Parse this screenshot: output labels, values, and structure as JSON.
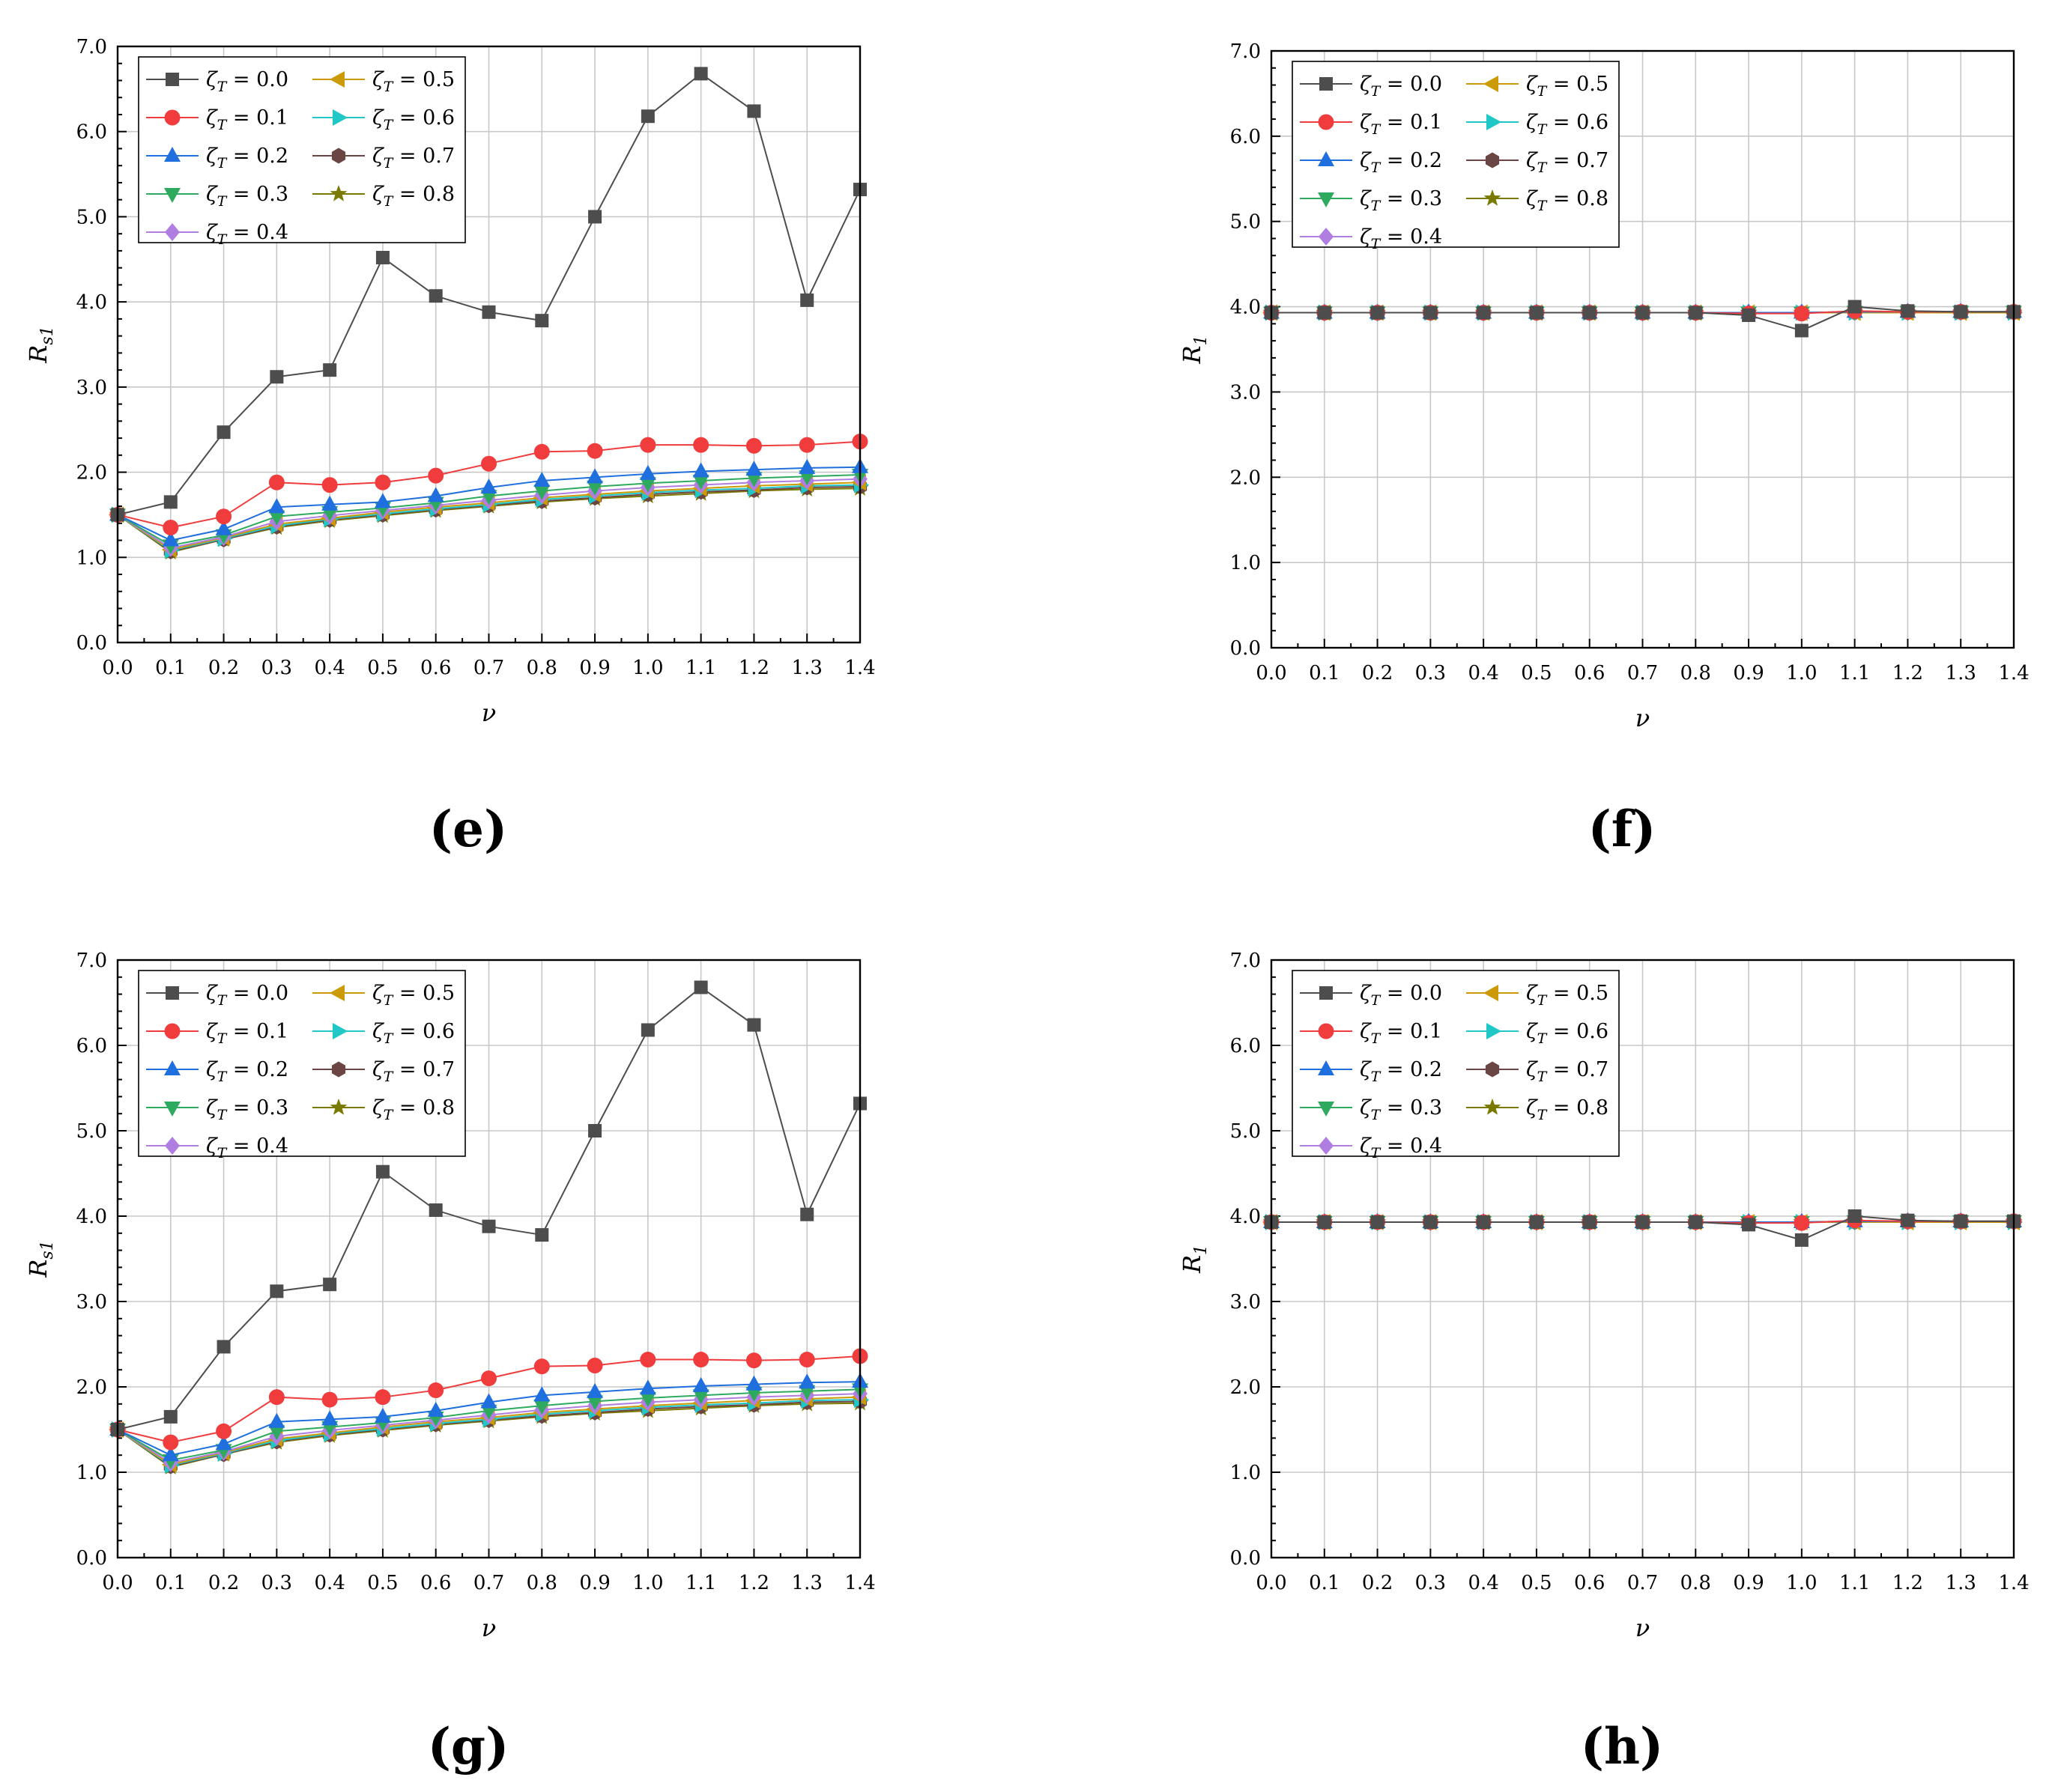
{
  "colors": {
    "series": [
      "#4d4d4d",
      "#f03c3c",
      "#1f6fde",
      "#2eaa5e",
      "#b07ee0",
      "#cc9a06",
      "#1fc7c7",
      "#6b4444",
      "#7a7a00"
    ],
    "grid": "#c8c8c8",
    "axis": "#000000"
  },
  "chart_data": [
    {
      "type": "line",
      "panel_label": "(e)",
      "xlabel": "ν",
      "ylabel": "R",
      "ylabel_sub": "s1",
      "xlim": [
        0,
        1.4
      ],
      "ylim": [
        0,
        7
      ],
      "x": [
        0.0,
        0.1,
        0.2,
        0.3,
        0.4,
        0.5,
        0.6,
        0.7,
        0.8,
        0.9,
        1.0,
        1.1,
        1.2,
        1.3,
        1.4
      ],
      "x_tick_labels": [
        "0.0",
        "0.1",
        "0.2",
        "0.3",
        "0.4",
        "0.5",
        "0.6",
        "0.7",
        "0.8",
        "0.9",
        "1.0",
        "1.1",
        "1.2",
        "1.3",
        "1.4"
      ],
      "y_tick_labels": [
        "0.0",
        "1.0",
        "2.0",
        "3.0",
        "4.0",
        "5.0",
        "6.0",
        "7.0"
      ],
      "legend_position": "top-left",
      "series": [
        {
          "name": "= 0.0",
          "marker": "square",
          "values": [
            1.5,
            1.65,
            2.47,
            3.12,
            3.2,
            4.52,
            4.07,
            3.88,
            3.78,
            5.0,
            6.18,
            6.68,
            6.24,
            4.02,
            5.32
          ]
        },
        {
          "name": "= 0.1",
          "marker": "circle",
          "values": [
            1.5,
            1.35,
            1.48,
            1.88,
            1.85,
            1.88,
            1.96,
            2.1,
            2.24,
            2.25,
            2.32,
            2.32,
            2.31,
            2.32,
            2.36
          ]
        },
        {
          "name": "= 0.2",
          "marker": "triangle-up",
          "values": [
            1.5,
            1.2,
            1.33,
            1.59,
            1.62,
            1.65,
            1.72,
            1.82,
            1.9,
            1.94,
            1.98,
            2.01,
            2.03,
            2.05,
            2.06
          ]
        },
        {
          "name": "= 0.3",
          "marker": "triangle-down",
          "values": [
            1.5,
            1.14,
            1.26,
            1.48,
            1.53,
            1.58,
            1.64,
            1.72,
            1.78,
            1.83,
            1.87,
            1.9,
            1.93,
            1.95,
            1.97
          ]
        },
        {
          "name": "= 0.4",
          "marker": "diamond",
          "values": [
            1.5,
            1.11,
            1.24,
            1.42,
            1.49,
            1.55,
            1.61,
            1.67,
            1.73,
            1.78,
            1.82,
            1.85,
            1.88,
            1.9,
            1.92
          ]
        },
        {
          "name": "= 0.5",
          "marker": "triangle-left",
          "values": [
            1.5,
            1.09,
            1.23,
            1.39,
            1.46,
            1.53,
            1.59,
            1.64,
            1.7,
            1.74,
            1.78,
            1.81,
            1.84,
            1.86,
            1.88
          ]
        },
        {
          "name": "= 0.6",
          "marker": "triangle-right",
          "values": [
            1.5,
            1.08,
            1.22,
            1.37,
            1.45,
            1.51,
            1.57,
            1.62,
            1.68,
            1.72,
            1.76,
            1.79,
            1.81,
            1.84,
            1.85
          ]
        },
        {
          "name": "= 0.7",
          "marker": "hexagon",
          "values": [
            1.5,
            1.07,
            1.21,
            1.36,
            1.44,
            1.5,
            1.56,
            1.61,
            1.66,
            1.7,
            1.74,
            1.77,
            1.79,
            1.82,
            1.83
          ]
        },
        {
          "name": "= 0.8",
          "marker": "star",
          "values": [
            1.5,
            1.06,
            1.21,
            1.35,
            1.43,
            1.49,
            1.55,
            1.6,
            1.65,
            1.69,
            1.72,
            1.75,
            1.78,
            1.8,
            1.81
          ]
        }
      ]
    },
    {
      "type": "line",
      "panel_label": "(f)",
      "xlabel": "ν",
      "ylabel": "R",
      "ylabel_sub": "1",
      "xlim": [
        0,
        1.4
      ],
      "ylim": [
        0,
        7
      ],
      "x": [
        0.0,
        0.1,
        0.2,
        0.3,
        0.4,
        0.5,
        0.6,
        0.7,
        0.8,
        0.9,
        1.0,
        1.1,
        1.2,
        1.3,
        1.4
      ],
      "x_tick_labels": [
        "0.0",
        "0.1",
        "0.2",
        "0.3",
        "0.4",
        "0.5",
        "0.6",
        "0.7",
        "0.8",
        "0.9",
        "1.0",
        "1.1",
        "1.2",
        "1.3",
        "1.4"
      ],
      "y_tick_labels": [
        "0.0",
        "1.0",
        "2.0",
        "3.0",
        "4.0",
        "5.0",
        "6.0",
        "7.0"
      ],
      "legend_position": "top-left",
      "series": [
        {
          "name": "= 0.0",
          "marker": "square",
          "values": [
            3.93,
            3.93,
            3.93,
            3.93,
            3.93,
            3.93,
            3.93,
            3.93,
            3.93,
            3.9,
            3.72,
            4.0,
            3.95,
            3.94,
            3.94
          ]
        },
        {
          "name": "= 0.1",
          "marker": "circle",
          "values": [
            3.93,
            3.93,
            3.93,
            3.93,
            3.93,
            3.93,
            3.93,
            3.93,
            3.93,
            3.92,
            3.92,
            3.95,
            3.94,
            3.94,
            3.94
          ]
        },
        {
          "name": "= 0.2",
          "marker": "triangle-up",
          "values": [
            3.93,
            3.93,
            3.93,
            3.93,
            3.93,
            3.93,
            3.93,
            3.93,
            3.93,
            3.93,
            3.93,
            3.94,
            3.94,
            3.94,
            3.94
          ]
        },
        {
          "name": "= 0.3",
          "marker": "triangle-down",
          "values": [
            3.93,
            3.93,
            3.93,
            3.93,
            3.93,
            3.93,
            3.93,
            3.93,
            3.93,
            3.93,
            3.93,
            3.94,
            3.94,
            3.94,
            3.94
          ]
        },
        {
          "name": "= 0.4",
          "marker": "diamond",
          "values": [
            3.93,
            3.93,
            3.93,
            3.93,
            3.93,
            3.93,
            3.93,
            3.93,
            3.93,
            3.93,
            3.93,
            3.94,
            3.94,
            3.94,
            3.94
          ]
        },
        {
          "name": "= 0.5",
          "marker": "triangle-left",
          "values": [
            3.93,
            3.93,
            3.93,
            3.93,
            3.93,
            3.93,
            3.93,
            3.93,
            3.93,
            3.93,
            3.93,
            3.93,
            3.93,
            3.93,
            3.93
          ]
        },
        {
          "name": "= 0.6",
          "marker": "triangle-right",
          "values": [
            3.93,
            3.93,
            3.93,
            3.93,
            3.93,
            3.93,
            3.93,
            3.93,
            3.93,
            3.93,
            3.93,
            3.93,
            3.93,
            3.93,
            3.93
          ]
        },
        {
          "name": "= 0.7",
          "marker": "hexagon",
          "values": [
            3.93,
            3.93,
            3.93,
            3.93,
            3.93,
            3.93,
            3.93,
            3.93,
            3.93,
            3.93,
            3.93,
            3.93,
            3.93,
            3.93,
            3.93
          ]
        },
        {
          "name": "= 0.8",
          "marker": "star",
          "values": [
            3.93,
            3.93,
            3.93,
            3.93,
            3.93,
            3.93,
            3.93,
            3.93,
            3.93,
            3.93,
            3.93,
            3.93,
            3.93,
            3.93,
            3.93
          ]
        }
      ]
    },
    {
      "type": "line",
      "panel_label": "(g)",
      "xlabel": "ν",
      "ylabel": "R",
      "ylabel_sub": "s1",
      "xlim": [
        0,
        1.4
      ],
      "ylim": [
        0,
        7
      ],
      "x": [
        0.0,
        0.1,
        0.2,
        0.3,
        0.4,
        0.5,
        0.6,
        0.7,
        0.8,
        0.9,
        1.0,
        1.1,
        1.2,
        1.3,
        1.4
      ],
      "x_tick_labels": [
        "0.0",
        "0.1",
        "0.2",
        "0.3",
        "0.4",
        "0.5",
        "0.6",
        "0.7",
        "0.8",
        "0.9",
        "1.0",
        "1.1",
        "1.2",
        "1.3",
        "1.4"
      ],
      "y_tick_labels": [
        "0.0",
        "1.0",
        "2.0",
        "3.0",
        "4.0",
        "5.0",
        "6.0",
        "7.0"
      ],
      "legend_position": "top-left",
      "series": [
        {
          "name": "= 0.0",
          "marker": "square",
          "values": [
            1.5,
            1.65,
            2.47,
            3.12,
            3.2,
            4.52,
            4.07,
            3.88,
            3.78,
            5.0,
            6.18,
            6.68,
            6.24,
            4.02,
            5.32
          ]
        },
        {
          "name": "= 0.1",
          "marker": "circle",
          "values": [
            1.5,
            1.35,
            1.48,
            1.88,
            1.85,
            1.88,
            1.96,
            2.1,
            2.24,
            2.25,
            2.32,
            2.32,
            2.31,
            2.32,
            2.36
          ]
        },
        {
          "name": "= 0.2",
          "marker": "triangle-up",
          "values": [
            1.5,
            1.2,
            1.33,
            1.59,
            1.62,
            1.65,
            1.72,
            1.82,
            1.9,
            1.94,
            1.98,
            2.01,
            2.03,
            2.05,
            2.06
          ]
        },
        {
          "name": "= 0.3",
          "marker": "triangle-down",
          "values": [
            1.5,
            1.14,
            1.26,
            1.48,
            1.53,
            1.58,
            1.64,
            1.72,
            1.78,
            1.83,
            1.87,
            1.9,
            1.93,
            1.95,
            1.97
          ]
        },
        {
          "name": "= 0.4",
          "marker": "diamond",
          "values": [
            1.5,
            1.11,
            1.24,
            1.42,
            1.49,
            1.55,
            1.61,
            1.67,
            1.73,
            1.78,
            1.82,
            1.85,
            1.88,
            1.9,
            1.92
          ]
        },
        {
          "name": "= 0.5",
          "marker": "triangle-left",
          "values": [
            1.5,
            1.09,
            1.23,
            1.39,
            1.46,
            1.53,
            1.59,
            1.64,
            1.7,
            1.74,
            1.78,
            1.81,
            1.84,
            1.86,
            1.88
          ]
        },
        {
          "name": "= 0.6",
          "marker": "triangle-right",
          "values": [
            1.5,
            1.08,
            1.22,
            1.37,
            1.45,
            1.51,
            1.57,
            1.62,
            1.68,
            1.72,
            1.76,
            1.79,
            1.81,
            1.84,
            1.85
          ]
        },
        {
          "name": "= 0.7",
          "marker": "hexagon",
          "values": [
            1.5,
            1.07,
            1.21,
            1.36,
            1.44,
            1.5,
            1.56,
            1.61,
            1.66,
            1.7,
            1.74,
            1.77,
            1.79,
            1.82,
            1.83
          ]
        },
        {
          "name": "= 0.8",
          "marker": "star",
          "values": [
            1.5,
            1.06,
            1.21,
            1.35,
            1.43,
            1.49,
            1.55,
            1.6,
            1.65,
            1.69,
            1.72,
            1.75,
            1.78,
            1.8,
            1.81
          ]
        }
      ]
    },
    {
      "type": "line",
      "panel_label": "(h)",
      "xlabel": "ν",
      "ylabel": "R",
      "ylabel_sub": "1",
      "xlim": [
        0,
        1.4
      ],
      "ylim": [
        0,
        7
      ],
      "x": [
        0.0,
        0.1,
        0.2,
        0.3,
        0.4,
        0.5,
        0.6,
        0.7,
        0.8,
        0.9,
        1.0,
        1.1,
        1.2,
        1.3,
        1.4
      ],
      "x_tick_labels": [
        "0.0",
        "0.1",
        "0.2",
        "0.3",
        "0.4",
        "0.5",
        "0.6",
        "0.7",
        "0.8",
        "0.9",
        "1.0",
        "1.1",
        "1.2",
        "1.3",
        "1.4"
      ],
      "y_tick_labels": [
        "0.0",
        "1.0",
        "2.0",
        "3.0",
        "4.0",
        "5.0",
        "6.0",
        "7.0"
      ],
      "legend_position": "top-left",
      "series": [
        {
          "name": "= 0.0",
          "marker": "square",
          "values": [
            3.93,
            3.93,
            3.93,
            3.93,
            3.93,
            3.93,
            3.93,
            3.93,
            3.93,
            3.9,
            3.72,
            4.0,
            3.95,
            3.94,
            3.94
          ]
        },
        {
          "name": "= 0.1",
          "marker": "circle",
          "values": [
            3.93,
            3.93,
            3.93,
            3.93,
            3.93,
            3.93,
            3.93,
            3.93,
            3.93,
            3.92,
            3.92,
            3.95,
            3.94,
            3.94,
            3.94
          ]
        },
        {
          "name": "= 0.2",
          "marker": "triangle-up",
          "values": [
            3.93,
            3.93,
            3.93,
            3.93,
            3.93,
            3.93,
            3.93,
            3.93,
            3.93,
            3.93,
            3.93,
            3.94,
            3.94,
            3.94,
            3.94
          ]
        },
        {
          "name": "= 0.3",
          "marker": "triangle-down",
          "values": [
            3.93,
            3.93,
            3.93,
            3.93,
            3.93,
            3.93,
            3.93,
            3.93,
            3.93,
            3.93,
            3.93,
            3.94,
            3.94,
            3.94,
            3.94
          ]
        },
        {
          "name": "= 0.4",
          "marker": "diamond",
          "values": [
            3.93,
            3.93,
            3.93,
            3.93,
            3.93,
            3.93,
            3.93,
            3.93,
            3.93,
            3.93,
            3.93,
            3.94,
            3.94,
            3.94,
            3.94
          ]
        },
        {
          "name": "= 0.5",
          "marker": "triangle-left",
          "values": [
            3.93,
            3.93,
            3.93,
            3.93,
            3.93,
            3.93,
            3.93,
            3.93,
            3.93,
            3.93,
            3.93,
            3.93,
            3.93,
            3.93,
            3.93
          ]
        },
        {
          "name": "= 0.6",
          "marker": "triangle-right",
          "values": [
            3.93,
            3.93,
            3.93,
            3.93,
            3.93,
            3.93,
            3.93,
            3.93,
            3.93,
            3.93,
            3.93,
            3.93,
            3.93,
            3.93,
            3.93
          ]
        },
        {
          "name": "= 0.7",
          "marker": "hexagon",
          "values": [
            3.93,
            3.93,
            3.93,
            3.93,
            3.93,
            3.93,
            3.93,
            3.93,
            3.93,
            3.93,
            3.93,
            3.93,
            3.93,
            3.93,
            3.93
          ]
        },
        {
          "name": "= 0.8",
          "marker": "star",
          "values": [
            3.93,
            3.93,
            3.93,
            3.93,
            3.93,
            3.93,
            3.93,
            3.93,
            3.93,
            3.93,
            3.93,
            3.93,
            3.93,
            3.93,
            3.93
          ]
        }
      ]
    }
  ],
  "legend_symbol": "ζ",
  "legend_symbol_sub": "T"
}
